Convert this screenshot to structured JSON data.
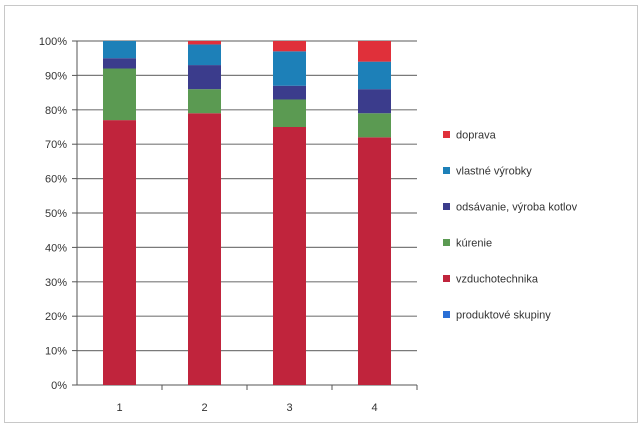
{
  "chart_data": {
    "type": "bar",
    "stacked": true,
    "percent": true,
    "title": "",
    "xlabel": "",
    "ylabel": "",
    "categories": [
      "1",
      "2",
      "3",
      "4"
    ],
    "ylim": [
      0,
      100
    ],
    "yticks": [
      "0%",
      "10%",
      "20%",
      "30%",
      "40%",
      "50%",
      "60%",
      "70%",
      "80%",
      "90%",
      "100%"
    ],
    "grid": true,
    "legend_position": "right",
    "series": [
      {
        "name": "produktové skupiny",
        "color": "#2a6fd6",
        "values": [
          0,
          0,
          0,
          0
        ]
      },
      {
        "name": "vzduchotechnika",
        "color": "#c0243c",
        "values": [
          77,
          79,
          75,
          72
        ]
      },
      {
        "name": "kúrenie",
        "color": "#5b9a52",
        "values": [
          15,
          7,
          8,
          7
        ]
      },
      {
        "name": "odsávanie, výroba kotlov",
        "color": "#3b3c8c",
        "values": [
          3,
          7,
          4,
          7
        ]
      },
      {
        "name": "vlastné výrobky",
        "color": "#1d80b8",
        "values": [
          5,
          6,
          10,
          8
        ]
      },
      {
        "name": "doprava",
        "color": "#e0303a",
        "values": [
          0,
          1,
          3,
          6
        ]
      }
    ],
    "legend_order": [
      "doprava",
      "vlastné výrobky",
      "odsávanie, výroba kotlov",
      "kúrenie",
      "vzduchotechnika",
      "produktové skupiny"
    ]
  }
}
